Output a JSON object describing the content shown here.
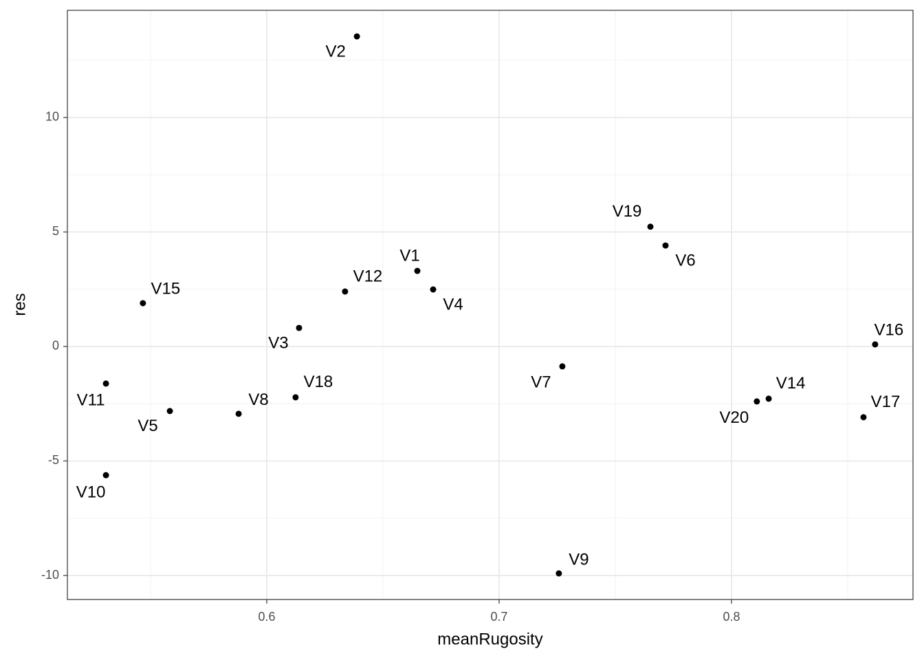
{
  "chart_data": {
    "type": "scatter",
    "x_label": "meanRugosity",
    "y_label": "res",
    "labels": [
      "V2",
      "V19",
      "V6",
      "V1",
      "V4",
      "V12",
      "V15",
      "V3",
      "V16",
      "V7",
      "V11",
      "V18",
      "V14",
      "V20",
      "V5",
      "V8",
      "V17",
      "V10",
      "V9"
    ],
    "x": [
      0.6388,
      0.7651,
      0.7716,
      0.6648,
      0.6716,
      0.6337,
      0.5467,
      0.6139,
      0.8618,
      0.7272,
      0.5308,
      0.6124,
      0.816,
      0.8109,
      0.5583,
      0.5879,
      0.8568,
      0.5308,
      0.7257
    ],
    "values": [
      13.54,
      5.23,
      4.41,
      3.3,
      2.49,
      2.4,
      1.89,
      0.81,
      0.09,
      -0.87,
      -1.62,
      -2.22,
      -2.28,
      -2.4,
      -2.82,
      -2.94,
      -3.09,
      -5.62,
      -9.91
    ],
    "color": "#000000",
    "xlim": [
      0.5142,
      0.8781
    ],
    "xticks": [
      0.6,
      0.7,
      0.8
    ],
    "ylim": [
      -11.05,
      14.68
    ],
    "yticks": [
      -10,
      -5,
      0,
      5,
      10
    ],
    "grid": true
  }
}
